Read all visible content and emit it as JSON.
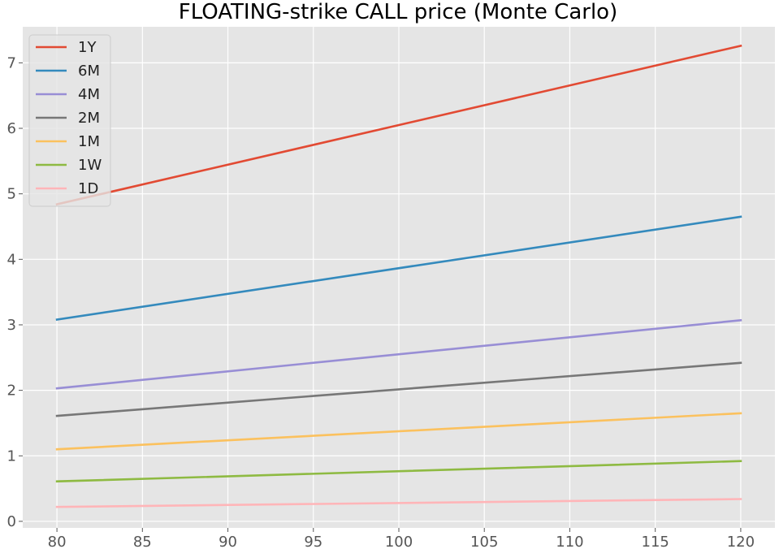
{
  "chart_data": {
    "type": "line",
    "title": "FLOATING-strike CALL price (Monte Carlo)",
    "xlabel": "",
    "ylabel": "",
    "x": [
      80,
      120
    ],
    "xlim": [
      78,
      122
    ],
    "ylim": [
      -0.1,
      7.55
    ],
    "xticks": [
      80,
      85,
      90,
      95,
      100,
      105,
      110,
      115,
      120
    ],
    "yticks": [
      0,
      1,
      2,
      3,
      4,
      5,
      6,
      7
    ],
    "grid": true,
    "legend_position": "upper-left",
    "background": "#e5e5e5",
    "series": [
      {
        "name": "1Y",
        "color": "#e24a33",
        "values": [
          4.84,
          7.26
        ]
      },
      {
        "name": "6M",
        "color": "#348abd",
        "values": [
          3.08,
          4.65
        ]
      },
      {
        "name": "4M",
        "color": "#988ed5",
        "values": [
          2.03,
          3.07
        ]
      },
      {
        "name": "2M",
        "color": "#777777",
        "values": [
          1.61,
          2.42
        ]
      },
      {
        "name": "1M",
        "color": "#fbc15e",
        "values": [
          1.1,
          1.65
        ]
      },
      {
        "name": "1W",
        "color": "#8eba42",
        "values": [
          0.61,
          0.92
        ]
      },
      {
        "name": "1D",
        "color": "#ffb5b8",
        "values": [
          0.22,
          0.34
        ]
      }
    ]
  }
}
